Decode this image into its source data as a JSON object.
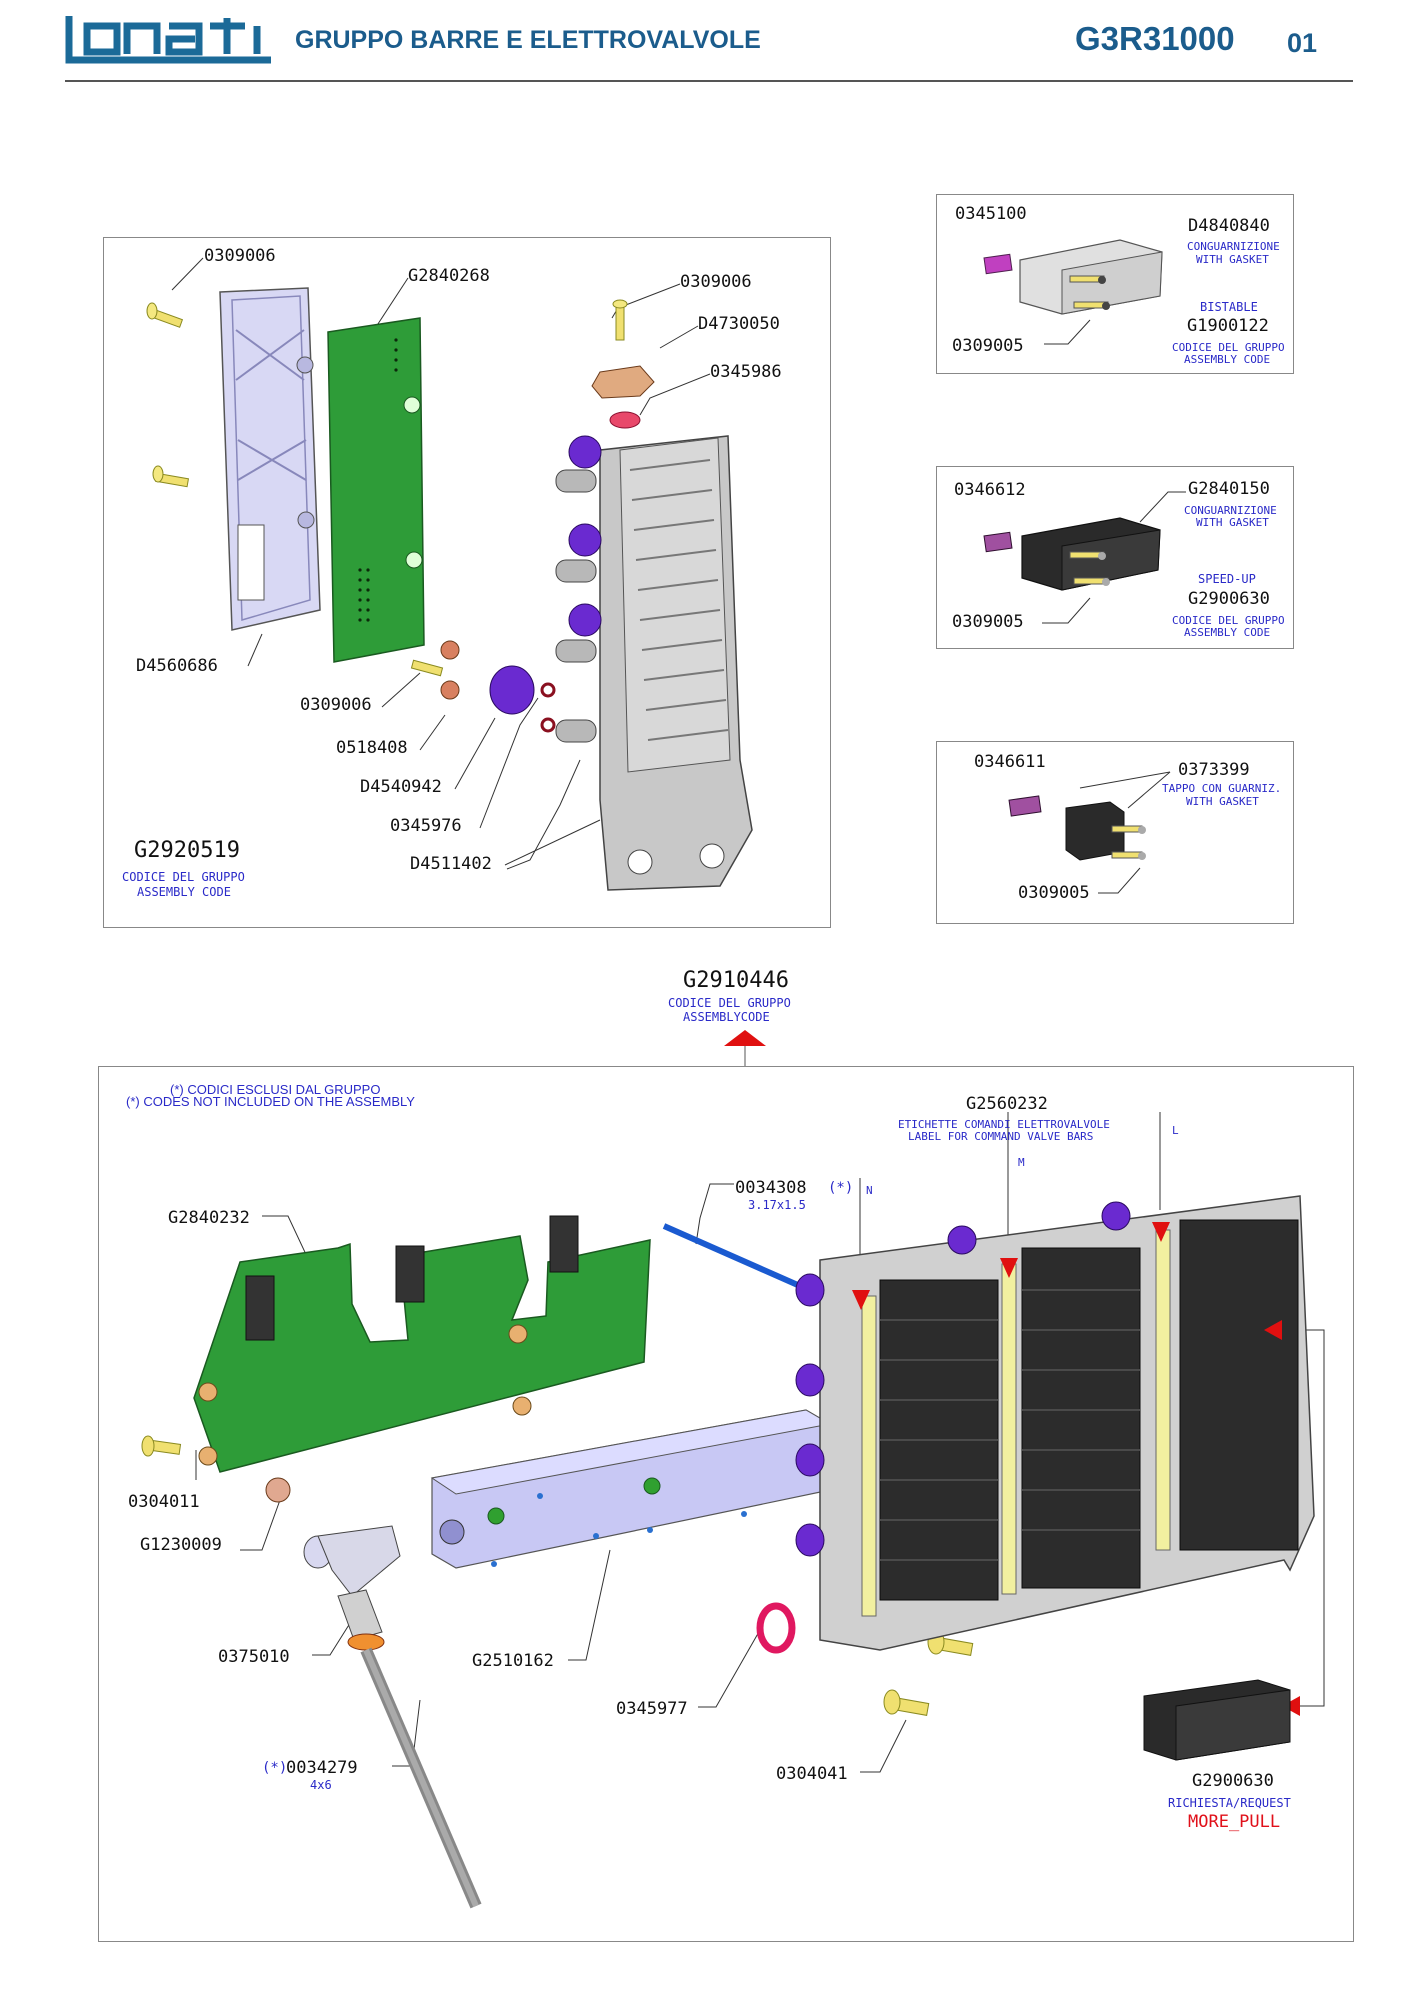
{
  "header": {
    "logo_text": "lonati",
    "title": "GRUPPO BARRE E ELETTROVALVOLE",
    "code": "G3R31000",
    "page": "01"
  },
  "panel_a": {
    "parts": [
      "0309006",
      "G2840268",
      "0309006",
      "D4730050",
      "0345986",
      "D4560686",
      "0309006",
      "0518408",
      "D4540942",
      "0345976",
      "D4511402"
    ],
    "assembly_code": "G2920519",
    "assembly_note_it": "CODICE DEL GRUPPO",
    "assembly_note_en": "ASSEMBLY CODE"
  },
  "panel_bistable": {
    "part_a": "0345100",
    "part_b": "D4840840",
    "note_b_it": "CONGUARNIZIONE",
    "note_b_en": "WITH GASKET",
    "type": "BISTABLE",
    "group_code": "G1900122",
    "group_note_it": "CODICE DEL GRUPPO",
    "group_note_en": "ASSEMBLY CODE",
    "screw": "0309005"
  },
  "panel_speedup": {
    "part_a": "0346612",
    "part_b": "G2840150",
    "note_b_it": "CONGUARNIZIONE",
    "note_b_en": "WITH GASKET",
    "type": "SPEED-UP",
    "group_code": "G2900630",
    "group_note_it": "CODICE DEL GRUPPO",
    "group_note_en": "ASSEMBLY CODE",
    "screw": "0309005"
  },
  "panel_cap": {
    "part_a": "0346611",
    "part_b": "0373399",
    "note_b_it": "TAPPO CON GUARNIZ.",
    "note_b_en": "WITH GASKET",
    "screw": "0309005"
  },
  "main": {
    "assembly_code": "G2910446",
    "assembly_note_it": "CODICE DEL GRUPPO",
    "assembly_note_en": "ASSEMBLYCODE",
    "excluded_note_it": "(*) CODICI ESCLUSI DAL GRUPPO",
    "excluded_note_en": "(*) CODES NOT INCLUDED ON THE ASSEMBLY",
    "label_code": "G2560232",
    "label_note_it": "ETICHETTE COMANDI ELETTROVALVOLE",
    "label_note_en": "LABEL FOR COMMAND VALVE BARS",
    "letter_l": "L",
    "letter_m": "M",
    "letter_n": "N",
    "tube_code": "0034308",
    "tube_star": "(*)",
    "tube_size": "3.17x1.5",
    "board": "G2840232",
    "screw_a": "0304011",
    "washer": "G1230009",
    "fitting": "0375010",
    "bar": "G2510162",
    "oring": "0345977",
    "tube2_star": "(*)",
    "tube2_code": "0034279",
    "tube2_size": "4x6",
    "screw_b": "0304041",
    "valve_code": "G2900630",
    "valve_req": "RICHIESTA/REQUEST",
    "valve_more": "MORE_PULL"
  }
}
